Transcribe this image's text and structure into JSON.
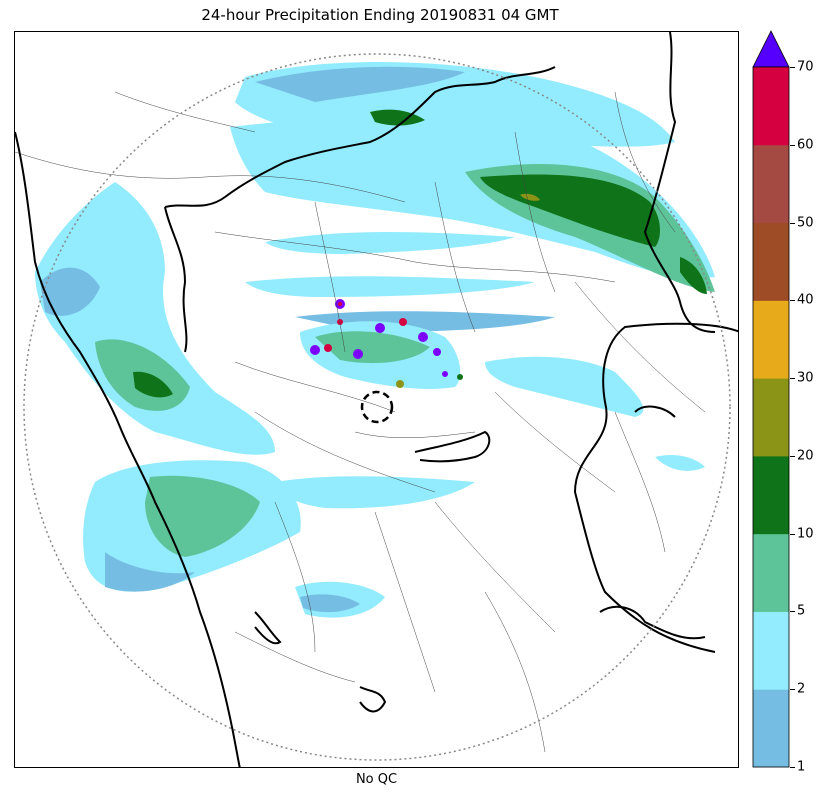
{
  "title": "24-hour Precipitation Ending 20190831 04 GMT",
  "xlabel": "No QC",
  "colorbar": {
    "ticks": [
      "1",
      "2",
      "5",
      "10",
      "20",
      "30",
      "40",
      "50",
      "60",
      "70"
    ],
    "colors": [
      "#76bde3",
      "#92ecfe",
      "#5dc49a",
      "#0e7319",
      "#8c9418",
      "#e6aa1a",
      "#9d4c26",
      "#a54a42",
      "#d4003f"
    ],
    "extend_color": "#5500ff"
  },
  "map_colors": {
    "light_blue": "#76bde3",
    "cyan": "#92ecfe",
    "light_green": "#5dc49a",
    "dark_green": "#0e7319",
    "olive": "#8c9418",
    "purple": "#7b00ff",
    "red": "#d4003f"
  }
}
